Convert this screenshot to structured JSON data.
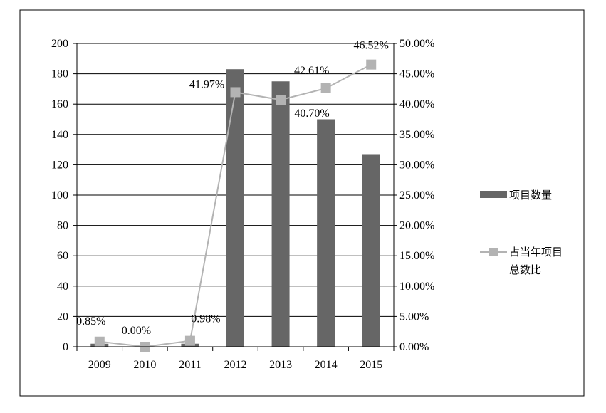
{
  "chart_data": {
    "type": "bar",
    "title": "",
    "categories": [
      "2009",
      "2010",
      "2011",
      "2012",
      "2013",
      "2014",
      "2015"
    ],
    "series": [
      {
        "name": "项目数量",
        "type": "bar",
        "axis": "left",
        "values": [
          2,
          0,
          2,
          183,
          175,
          150,
          127
        ],
        "color": "#666666"
      },
      {
        "name": "占当年项目总数比",
        "type": "line",
        "axis": "right",
        "values": [
          0.85,
          0.0,
          0.98,
          41.97,
          40.7,
          42.61,
          46.52
        ],
        "labels": [
          "0.85%",
          "0.00%",
          "0.98%",
          "41.97%",
          "40.70%",
          "42.61%",
          "46.52%"
        ],
        "color": "#b3b3b3"
      }
    ],
    "ylim": [
      0,
      200
    ],
    "yticks": [
      "0",
      "20",
      "40",
      "60",
      "80",
      "100",
      "120",
      "140",
      "160",
      "180",
      "200"
    ],
    "y2lim": [
      0,
      50
    ],
    "y2ticks": [
      "0.00%",
      "5.00%",
      "10.00%",
      "15.00%",
      "20.00%",
      "25.00%",
      "30.00%",
      "35.00%",
      "40.00%",
      "45.00%",
      "50.00%"
    ],
    "legend": {
      "position": "right",
      "entries": [
        "项目数量",
        "占当年项目",
        "总数比"
      ]
    },
    "grid": true
  }
}
